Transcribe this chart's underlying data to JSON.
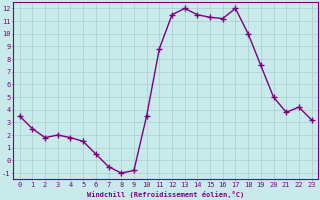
{
  "x": [
    0,
    1,
    2,
    3,
    4,
    5,
    6,
    7,
    8,
    9,
    10,
    11,
    12,
    13,
    14,
    15,
    16,
    17,
    18,
    19,
    20,
    21,
    22,
    23
  ],
  "y": [
    3.5,
    2.5,
    1.8,
    2.0,
    1.8,
    1.5,
    0.5,
    -0.5,
    -1.0,
    -0.8,
    3.5,
    8.8,
    11.5,
    12.0,
    11.5,
    11.3,
    11.2,
    12.0,
    10.0,
    7.5,
    5.0,
    3.8,
    4.2,
    3.2
  ],
  "line_color": "#800080",
  "marker": "+",
  "marker_size": 4,
  "bg_color": "#c8eaea",
  "grid_color": "#a8cece",
  "xlabel": "Windchill (Refroidissement éolien,°C)",
  "xlim": [
    -0.5,
    23.5
  ],
  "ylim": [
    -1.5,
    12.5
  ],
  "xticks": [
    0,
    1,
    2,
    3,
    4,
    5,
    6,
    7,
    8,
    9,
    10,
    11,
    12,
    13,
    14,
    15,
    16,
    17,
    18,
    19,
    20,
    21,
    22,
    23
  ],
  "yticks": [
    -1,
    0,
    1,
    2,
    3,
    4,
    5,
    6,
    7,
    8,
    9,
    10,
    11,
    12
  ],
  "tick_fontsize": 5,
  "xlabel_fontsize": 5,
  "tick_color": "#800080",
  "label_color": "#800080",
  "spine_color": "#800080",
  "linewidth": 1.0,
  "marker_color": "#800080"
}
